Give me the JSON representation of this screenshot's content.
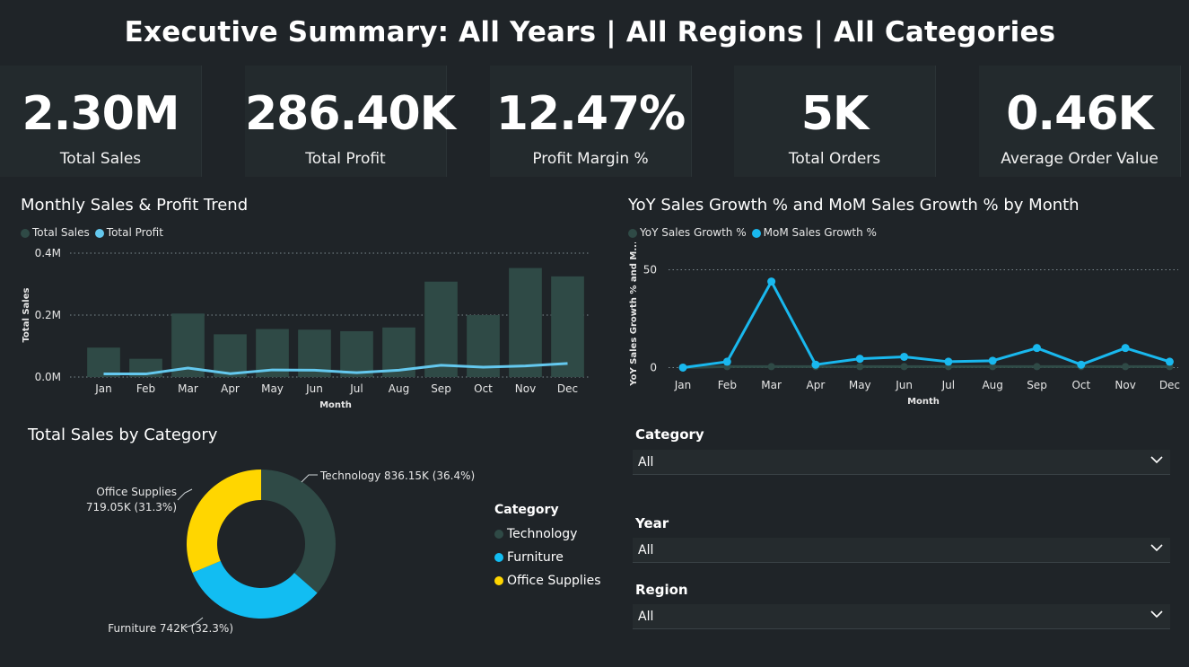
{
  "header": {
    "title": "Executive Summary: All Years | All Regions | All Categories"
  },
  "kpis": [
    {
      "value": "2.30M",
      "label": "Total Sales"
    },
    {
      "value": "286.40K",
      "label": "Total Profit"
    },
    {
      "value": "12.47%",
      "label": "Profit Margin %"
    },
    {
      "value": "5K",
      "label": "Total Orders"
    },
    {
      "value": "0.46K",
      "label": "Average Order Value"
    }
  ],
  "colors": {
    "background": "#1f2428",
    "sales_bar": "#2f4a46",
    "profit_line": "#64c8ee",
    "mom_line": "#19b8ee",
    "yoy_line": "#2f4a46",
    "technology": "#2f4a46",
    "furniture": "#12bdf2",
    "office_supplies": "#ffd600"
  },
  "chart_data": [
    {
      "type": "bar",
      "title": "Monthly Sales & Profit Trend",
      "xlabel": "Month",
      "ylabel": "Total Sales",
      "categories": [
        "Jan",
        "Feb",
        "Mar",
        "Apr",
        "May",
        "Jun",
        "Jul",
        "Aug",
        "Sep",
        "Oct",
        "Nov",
        "Dec"
      ],
      "ylim": [
        0,
        400000
      ],
      "ticks": [
        "0.0M",
        "0.2M",
        "0.4M"
      ],
      "series": [
        {
          "name": "Total Sales",
          "kind": "bar",
          "values": [
            95000,
            59000,
            205000,
            138000,
            155000,
            153000,
            148000,
            160000,
            308000,
            200000,
            352000,
            325000
          ]
        },
        {
          "name": "Total Profit",
          "kind": "line",
          "values": [
            10000,
            10000,
            29000,
            11000,
            23000,
            22000,
            14000,
            22000,
            38000,
            32000,
            36000,
            44000
          ]
        }
      ],
      "legend": "top-left",
      "grid": true
    },
    {
      "type": "line",
      "title": "YoY Sales Growth % and MoM Sales Growth % by Month",
      "xlabel": "Month",
      "ylabel": "YoY Sales Growth % and M...",
      "categories": [
        "Jan",
        "Feb",
        "Mar",
        "Apr",
        "May",
        "Jun",
        "Jul",
        "Aug",
        "Sep",
        "Oct",
        "Nov",
        "Dec"
      ],
      "ylim": [
        0,
        50
      ],
      "ticks": [
        "0",
        "50"
      ],
      "series": [
        {
          "name": "YoY Sales Growth %",
          "values": [
            0,
            0.5,
            0.5,
            0.5,
            0.5,
            0.5,
            0.5,
            0.5,
            0.5,
            0.5,
            0.5,
            0.5
          ]
        },
        {
          "name": "MoM Sales Growth %",
          "values": [
            0,
            3,
            44,
            1.5,
            4.5,
            5.5,
            3,
            3.5,
            10,
            1.5,
            10,
            3
          ]
        }
      ],
      "legend": "top-left",
      "grid": true
    },
    {
      "type": "pie",
      "title": "Total Sales by Category",
      "donut": true,
      "slices": [
        {
          "name": "Technology",
          "value": 836150,
          "label": "Technology 836.15K (36.4%)",
          "color": "#2f4a46"
        },
        {
          "name": "Furniture",
          "value": 742000,
          "label": "Furniture 742K (32.3%)",
          "color": "#12bdf2"
        },
        {
          "name": "Office Supplies",
          "value": 719050,
          "label_line1": "Office Supplies",
          "label_line2": "719.05K (31.3%)",
          "color": "#ffd600"
        }
      ],
      "legend_title": "Category",
      "legend": "right"
    }
  ],
  "slicers": [
    {
      "label": "Category",
      "value": "All"
    },
    {
      "label": "Year",
      "value": "All"
    },
    {
      "label": "Region",
      "value": "All"
    }
  ]
}
